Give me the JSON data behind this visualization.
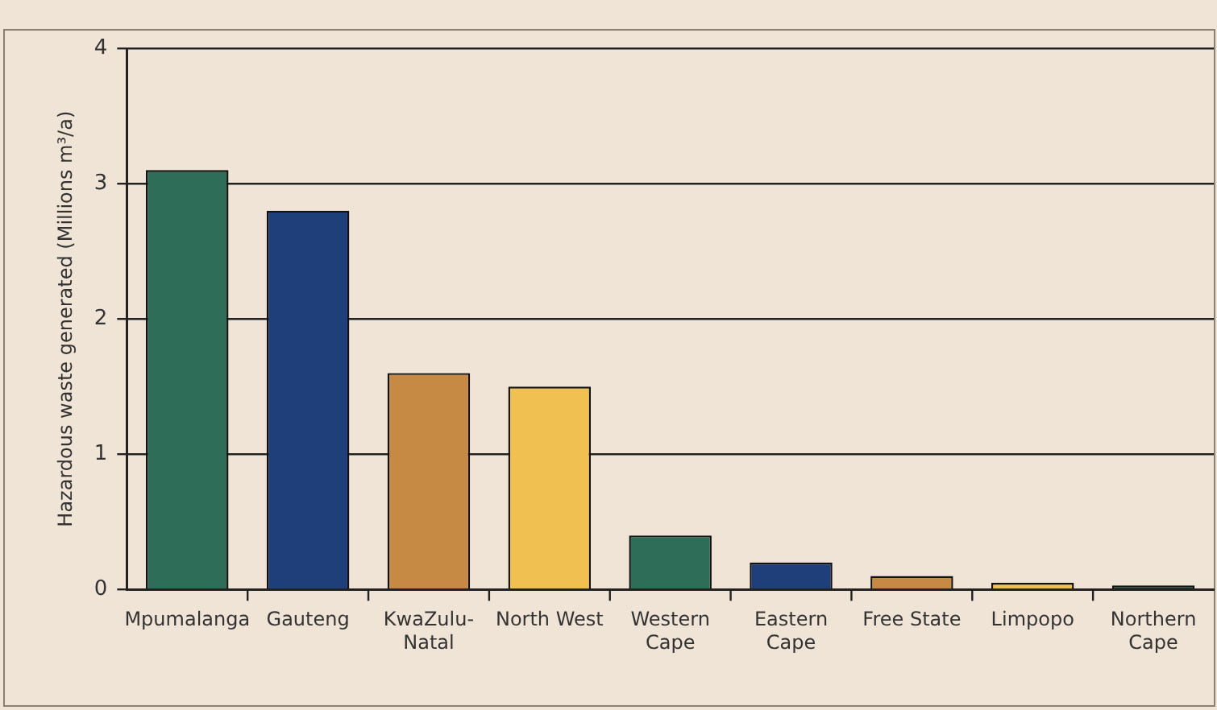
{
  "chart_data": {
    "type": "bar",
    "ylabel": "Hazardous waste generated (Millions m³/a)",
    "categories": [
      "Mpumalanga",
      "Gauteng",
      "KwaZulu-\nNatal",
      "North West",
      "Western\nCape",
      "Eastern\nCape",
      "Free State",
      "Limpopo",
      "Northern\nCape"
    ],
    "values": [
      3.1,
      2.8,
      1.6,
      1.5,
      0.4,
      0.2,
      0.1,
      0.05,
      0.03
    ],
    "colors": [
      "#2e6e58",
      "#1f3f7a",
      "#c68a45",
      "#f0c050",
      "#2e6e58",
      "#1f3f7a",
      "#c68a45",
      "#f0c050",
      "#1f3a2e"
    ],
    "ylim": [
      0,
      4
    ],
    "yticks": [
      0,
      1,
      2,
      3,
      4
    ],
    "grid": "y",
    "legend": false
  }
}
